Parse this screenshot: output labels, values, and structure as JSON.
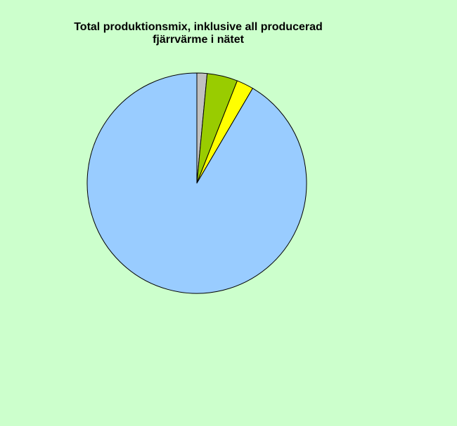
{
  "chart_data": {
    "type": "pie",
    "title_lines": [
      "Total produktionsmix, inklusive all producerad",
      "fjärrvärme i nätet"
    ],
    "slices": [
      {
        "value": 1.5,
        "color": "#c0c0c0"
      },
      {
        "value": 4.5,
        "color": "#99cc00"
      },
      {
        "value": 2.5,
        "color": "#ffff00"
      },
      {
        "value": 91.5,
        "color": "#99ccff"
      }
    ],
    "start_angle_deg": 0,
    "direction": "clockwise",
    "legend": "none"
  },
  "colors": {
    "background": "#ccffcc",
    "slice_border": "#000000"
  }
}
